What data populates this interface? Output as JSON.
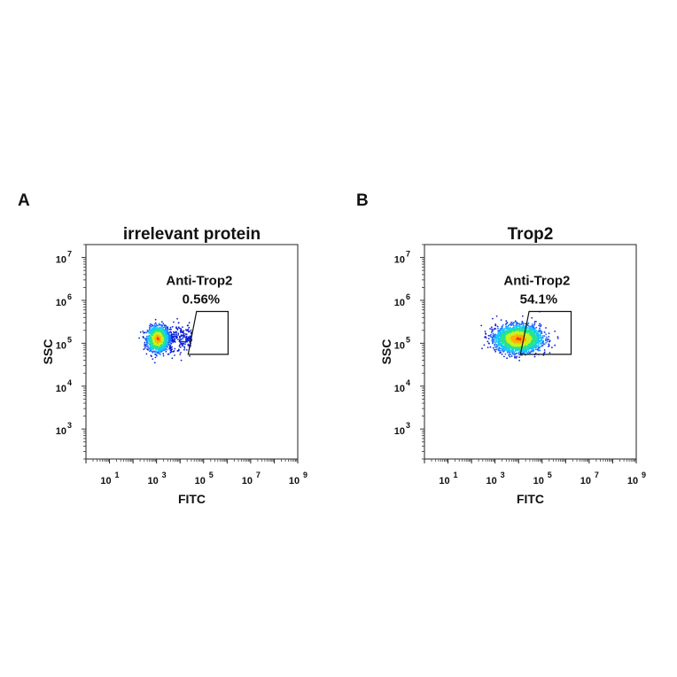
{
  "chart_data": [
    {
      "type": "scatter",
      "panel_letter": "A",
      "title": "irrelevant protein",
      "xlabel": "FITC",
      "ylabel": "SSC",
      "x_scale": "log",
      "y_scale": "log",
      "xlim": [
        1,
        1000000000
      ],
      "ylim": [
        200,
        20000000
      ],
      "x_ticks": [
        {
          "base": "10",
          "exp": "1",
          "value": 10
        },
        {
          "base": "10",
          "exp": "3",
          "value": 1000
        },
        {
          "base": "10",
          "exp": "5",
          "value": 100000
        },
        {
          "base": "10",
          "exp": "7",
          "value": 10000000
        },
        {
          "base": "10",
          "exp": "9",
          "value": 1000000000
        }
      ],
      "y_ticks": [
        {
          "base": "10",
          "exp": "3",
          "value": 1000
        },
        {
          "base": "10",
          "exp": "4",
          "value": 10000
        },
        {
          "base": "10",
          "exp": "5",
          "value": 100000
        },
        {
          "base": "10",
          "exp": "6",
          "value": 1000000
        },
        {
          "base": "10",
          "exp": "7",
          "value": 10000000
        }
      ],
      "gate": {
        "name": "Anti-Trop2",
        "percent": "0.56%",
        "vertices": [
          [
            22000,
            55000
          ],
          [
            1100000,
            55000
          ],
          [
            1100000,
            550000
          ],
          [
            50000,
            550000
          ]
        ]
      },
      "population": {
        "center_log10": [
          3.05,
          5.1
        ],
        "spread_log10": [
          0.38,
          0.25
        ],
        "tail_to_log10_x": 4.5,
        "points": 1500
      },
      "colors": [
        "#0b1fd6",
        "#1f6fff",
        "#13c8ff",
        "#27e38e",
        "#c9f21e",
        "#ffb000",
        "#ff3300"
      ]
    },
    {
      "type": "scatter",
      "panel_letter": "B",
      "title": "Trop2",
      "xlabel": "FITC",
      "ylabel": "SSC",
      "x_scale": "log",
      "y_scale": "log",
      "xlim": [
        1,
        1000000000
      ],
      "ylim": [
        200,
        20000000
      ],
      "x_ticks": [
        {
          "base": "10",
          "exp": "1",
          "value": 10
        },
        {
          "base": "10",
          "exp": "3",
          "value": 1000
        },
        {
          "base": "10",
          "exp": "5",
          "value": 100000
        },
        {
          "base": "10",
          "exp": "7",
          "value": 10000000
        },
        {
          "base": "10",
          "exp": "9",
          "value": 1000000000
        }
      ],
      "y_ticks": [
        {
          "base": "10",
          "exp": "3",
          "value": 1000
        },
        {
          "base": "10",
          "exp": "4",
          "value": 10000
        },
        {
          "base": "10",
          "exp": "5",
          "value": 100000
        },
        {
          "base": "10",
          "exp": "6",
          "value": 1000000
        },
        {
          "base": "10",
          "exp": "7",
          "value": 10000000
        }
      ],
      "gate": {
        "name": "Anti-Trop2",
        "percent": "54.1%",
        "vertices": [
          [
            12000,
            55000
          ],
          [
            1700000,
            55000
          ],
          [
            1700000,
            550000
          ],
          [
            28000,
            550000
          ]
        ]
      },
      "population": {
        "center_log10": [
          4.0,
          5.1
        ],
        "spread_log10": [
          0.85,
          0.27
        ],
        "tail_to_log10_x": 0,
        "points": 3200
      },
      "colors": [
        "#0b1fd6",
        "#1f6fff",
        "#13c8ff",
        "#27e38e",
        "#c9f21e",
        "#ffb000",
        "#ff3300"
      ]
    }
  ]
}
